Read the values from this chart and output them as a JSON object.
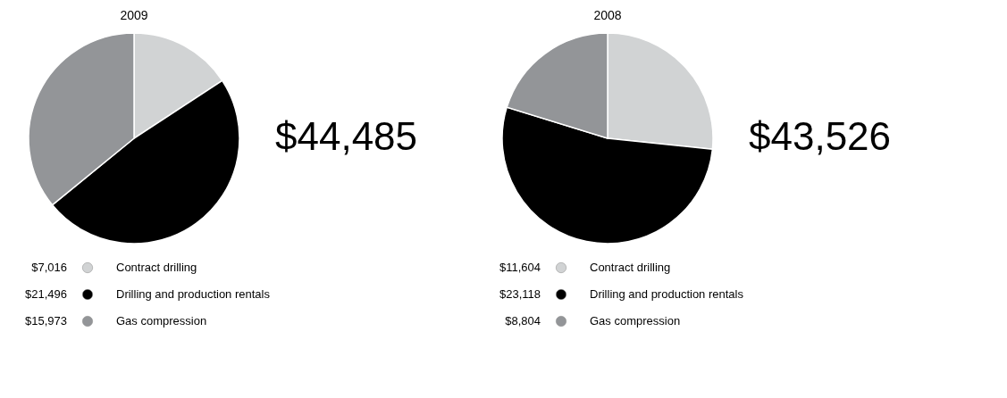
{
  "chart_data": [
    {
      "type": "pie",
      "title": "2009",
      "categories": [
        "Contract drilling",
        "Drilling and production rentals",
        "Gas compression"
      ],
      "values": [
        7016,
        21496,
        15973
      ],
      "value_labels": [
        "$7,016",
        "$21,496",
        "$15,973"
      ],
      "colors": [
        "#d1d3d4",
        "#000000",
        "#939598"
      ],
      "annotations": [
        "$44,485"
      ],
      "legend": "bottom"
    },
    {
      "type": "pie",
      "title": "2008",
      "categories": [
        "Contract drilling",
        "Drilling and production rentals",
        "Gas compression"
      ],
      "values": [
        11604,
        23118,
        8804
      ],
      "value_labels": [
        "$11,604",
        "$23,118",
        "$8,804"
      ],
      "colors": [
        "#d1d3d4",
        "#000000",
        "#939598"
      ],
      "annotations": [
        "$43,526"
      ],
      "legend": "bottom"
    }
  ]
}
